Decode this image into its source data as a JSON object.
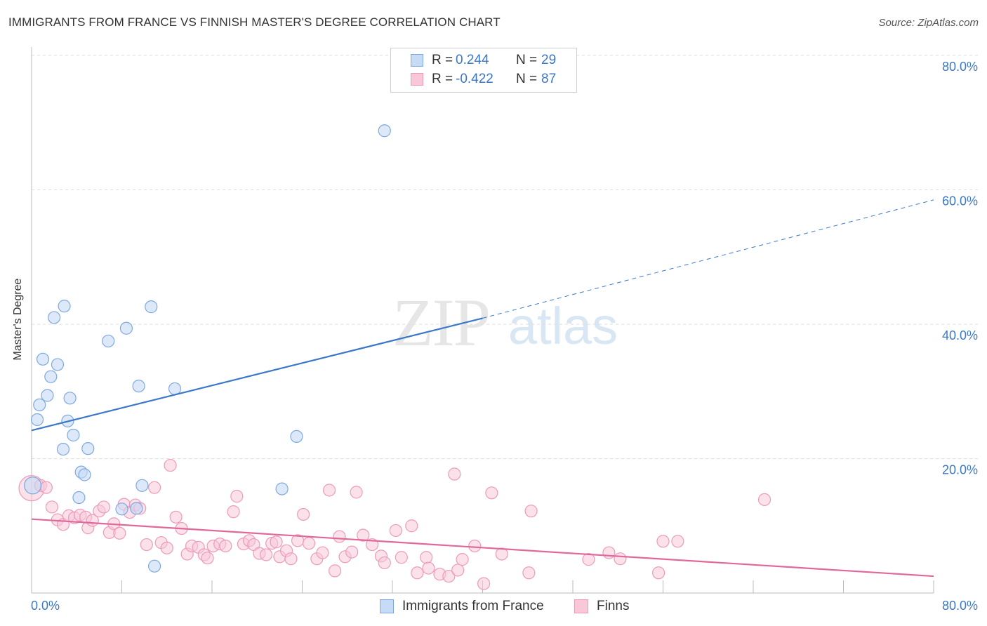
{
  "header": {
    "title": "IMMIGRANTS FROM FRANCE VS FINNISH MASTER'S DEGREE CORRELATION CHART",
    "source": "Source: ZipAtlas.com"
  },
  "colors": {
    "blue": "#3b78c8",
    "blue_fill": "#c6dbf5",
    "blue_stroke": "#7ea9e0",
    "pink": "#e0699a",
    "pink_fill": "#f8c8d8",
    "pink_stroke": "#ee9ab8",
    "grid": "#dddddd",
    "tick_text": "#3b78c8"
  },
  "legend": {
    "series1": {
      "r_label": "R =",
      "r_value": "0.244",
      "n_label": "N =",
      "n_value": "29"
    },
    "series2": {
      "r_label": "R =",
      "r_value": "-0.422",
      "n_label": "N =",
      "n_value": "87"
    }
  },
  "watermark": {
    "part1": "ZIP",
    "part2": "atlas"
  },
  "chart_data": {
    "type": "scatter",
    "title": "IMMIGRANTS FROM FRANCE VS FINNISH MASTER'S DEGREE CORRELATION CHART",
    "xlabel": "",
    "ylabel": "Master's Degree",
    "xlim": [
      0,
      80
    ],
    "ylim": [
      0,
      80
    ],
    "x_tick_labels": [
      "0.0%",
      "80.0%"
    ],
    "y_ticks": [
      20,
      40,
      60,
      80
    ],
    "y_tick_labels": [
      "20.0%",
      "40.0%",
      "60.0%",
      "80.0%"
    ],
    "grid": true,
    "legend_position": "top-center",
    "series": [
      {
        "name": "Immigrants from France",
        "color": "#3b78c8",
        "r": 0.244,
        "n": 29,
        "trend": {
          "x1": 0,
          "y1": 24.2,
          "x2": 40,
          "y2": 40.9,
          "dash_to_x": 80,
          "dash_to_y": 58.5
        },
        "points": [
          [
            0.1,
            16.0
          ],
          [
            0.5,
            25.8
          ],
          [
            0.7,
            28.0
          ],
          [
            1.0,
            34.8
          ],
          [
            1.4,
            29.4
          ],
          [
            1.7,
            32.2
          ],
          [
            2.0,
            41.0
          ],
          [
            2.3,
            34.0
          ],
          [
            2.8,
            21.4
          ],
          [
            2.9,
            42.7
          ],
          [
            3.2,
            25.6
          ],
          [
            3.4,
            29.0
          ],
          [
            3.7,
            23.5
          ],
          [
            4.2,
            14.2
          ],
          [
            4.4,
            18.0
          ],
          [
            4.7,
            17.6
          ],
          [
            5.0,
            21.5
          ],
          [
            6.8,
            37.5
          ],
          [
            8.0,
            12.5
          ],
          [
            8.4,
            39.4
          ],
          [
            9.3,
            12.6
          ],
          [
            9.5,
            30.8
          ],
          [
            9.8,
            16.0
          ],
          [
            10.6,
            42.6
          ],
          [
            10.9,
            4.0
          ],
          [
            12.7,
            30.4
          ],
          [
            22.2,
            15.5
          ],
          [
            23.5,
            23.3
          ],
          [
            31.3,
            68.8
          ]
        ]
      },
      {
        "name": "Finns",
        "color": "#e0699a",
        "r": -0.422,
        "n": 87,
        "trend": {
          "x1": 0,
          "y1": 11.0,
          "x2": 80,
          "y2": 2.5
        },
        "points": [
          [
            0.0,
            15.6
          ],
          [
            0.8,
            16.0
          ],
          [
            1.3,
            15.7
          ],
          [
            1.8,
            12.8
          ],
          [
            2.3,
            10.9
          ],
          [
            2.8,
            10.2
          ],
          [
            3.3,
            11.5
          ],
          [
            3.8,
            11.2
          ],
          [
            4.3,
            11.6
          ],
          [
            4.8,
            11.3
          ],
          [
            5.0,
            9.7
          ],
          [
            5.4,
            10.8
          ],
          [
            6.0,
            12.2
          ],
          [
            6.4,
            12.8
          ],
          [
            6.9,
            9.0
          ],
          [
            7.3,
            10.3
          ],
          [
            7.8,
            8.9
          ],
          [
            8.2,
            13.2
          ],
          [
            8.7,
            12.0
          ],
          [
            9.2,
            13.1
          ],
          [
            9.6,
            12.6
          ],
          [
            10.2,
            7.2
          ],
          [
            10.9,
            15.7
          ],
          [
            11.5,
            7.5
          ],
          [
            12.0,
            6.7
          ],
          [
            12.3,
            19.0
          ],
          [
            12.8,
            11.3
          ],
          [
            13.3,
            9.6
          ],
          [
            13.8,
            5.8
          ],
          [
            14.2,
            7.0
          ],
          [
            14.8,
            6.8
          ],
          [
            15.3,
            5.7
          ],
          [
            15.6,
            5.2
          ],
          [
            16.1,
            7.0
          ],
          [
            16.7,
            7.3
          ],
          [
            17.2,
            7.0
          ],
          [
            17.9,
            12.1
          ],
          [
            18.2,
            14.4
          ],
          [
            18.8,
            7.3
          ],
          [
            19.3,
            7.8
          ],
          [
            19.7,
            7.2
          ],
          [
            20.2,
            5.9
          ],
          [
            20.8,
            5.7
          ],
          [
            21.3,
            7.4
          ],
          [
            21.7,
            7.6
          ],
          [
            22.0,
            5.4
          ],
          [
            22.6,
            6.3
          ],
          [
            23.0,
            5.1
          ],
          [
            23.6,
            7.8
          ],
          [
            24.1,
            11.7
          ],
          [
            24.6,
            7.4
          ],
          [
            25.3,
            5.1
          ],
          [
            25.8,
            6.0
          ],
          [
            26.4,
            15.3
          ],
          [
            26.9,
            3.3
          ],
          [
            27.3,
            8.4
          ],
          [
            27.8,
            5.4
          ],
          [
            28.4,
            6.1
          ],
          [
            28.8,
            15.0
          ],
          [
            29.4,
            8.6
          ],
          [
            30.2,
            7.2
          ],
          [
            31.0,
            5.5
          ],
          [
            31.3,
            4.5
          ],
          [
            32.3,
            9.3
          ],
          [
            32.8,
            5.3
          ],
          [
            33.7,
            10.0
          ],
          [
            34.2,
            3.0
          ],
          [
            35.0,
            5.3
          ],
          [
            35.2,
            3.7
          ],
          [
            36.2,
            2.8
          ],
          [
            37.0,
            2.5
          ],
          [
            37.5,
            17.7
          ],
          [
            37.8,
            3.4
          ],
          [
            38.2,
            5.0
          ],
          [
            39.3,
            7.0
          ],
          [
            40.1,
            1.4
          ],
          [
            40.8,
            14.9
          ],
          [
            41.7,
            5.8
          ],
          [
            44.3,
            12.2
          ],
          [
            44.1,
            3.0
          ],
          [
            49.4,
            5.0
          ],
          [
            51.2,
            6.0
          ],
          [
            52.2,
            5.1
          ],
          [
            56.0,
            7.7
          ],
          [
            55.6,
            3.0
          ],
          [
            57.3,
            7.7
          ],
          [
            65.0,
            13.9
          ]
        ]
      }
    ]
  }
}
